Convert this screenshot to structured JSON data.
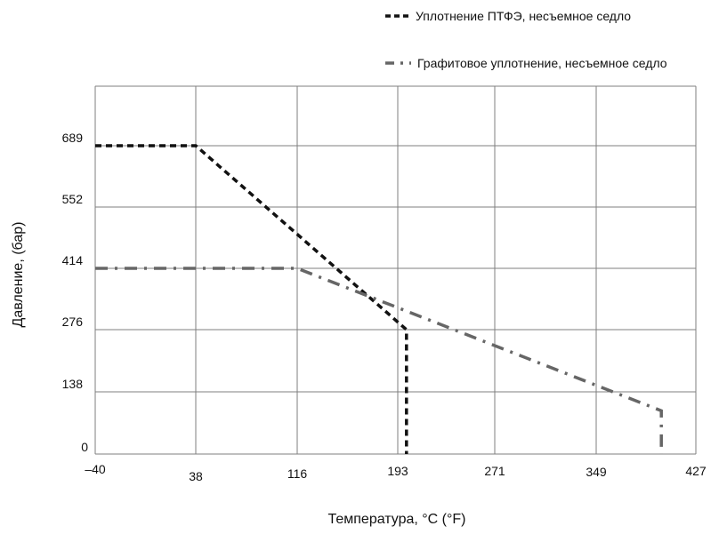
{
  "chart_data": {
    "type": "line",
    "xlabel": "Температура, °C (°F)",
    "ylabel": "Давление, (бар)",
    "x_ticks": [
      "–40",
      "38",
      "116",
      "193",
      "271",
      "349",
      "427"
    ],
    "y_ticks": [
      "0",
      "138",
      "276",
      "414",
      "552",
      "689"
    ],
    "xlim": [
      -40,
      427
    ],
    "ylim": [
      0,
      827
    ],
    "grid": true,
    "legend_position": "top-right",
    "series": [
      {
        "name": "Уплотнение ПТФЭ, несъемное седло",
        "style": "dashed",
        "color": "#111111",
        "x": [
          -40,
          38,
          200,
          200
        ],
        "y": [
          689,
          689,
          276,
          0
        ]
      },
      {
        "name": "Графитовое уплотнение, несъемное седло",
        "style": "dash-dot",
        "color": "#666666",
        "x": [
          -40,
          116,
          400,
          400
        ],
        "y": [
          414,
          414,
          96,
          0
        ]
      }
    ]
  }
}
